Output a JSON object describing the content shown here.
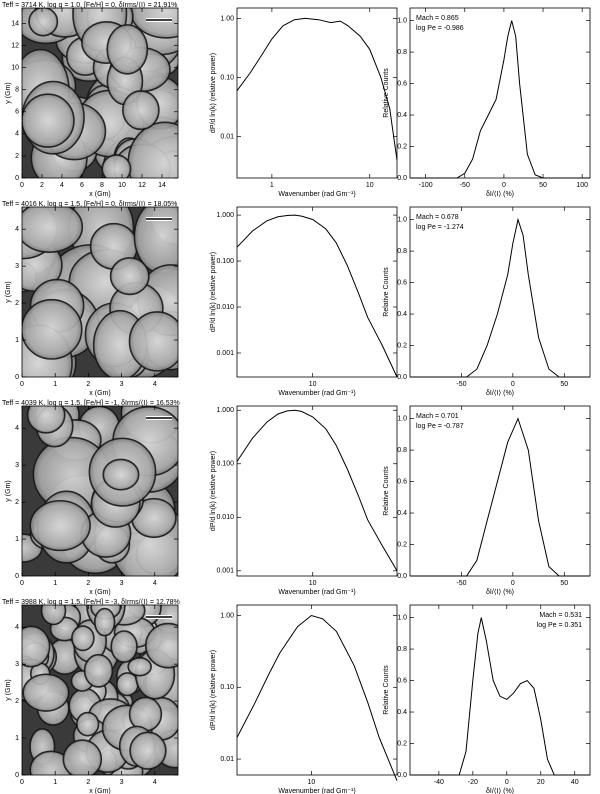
{
  "chart_data": [
    {
      "type": "image",
      "title": "Teff = 3714 K, log g = 1.0, [Fe/H] = 0, δIrms/⟨I⟩ = 21.91%",
      "xlabel": "x (Gm)",
      "ylabel": "y (Gm)",
      "xlim": [
        0,
        15.6
      ],
      "ylim": [
        0,
        15.4
      ],
      "xticks": [
        0,
        2,
        4,
        6,
        8,
        10,
        12,
        14
      ],
      "yticks": [
        0,
        2,
        4,
        6,
        8,
        10,
        12,
        14
      ]
    },
    {
      "type": "line",
      "xscale": "log",
      "yscale": "log",
      "xlabel": "Wavenumber (rad Gm⁻¹)",
      "ylabel": "dP/d ln(k) (relative power)",
      "xlim": [
        0.44,
        19
      ],
      "ylim": [
        0.002,
        1.5
      ],
      "xticks": [
        1,
        10
      ],
      "yticks": [
        {
          "value": 0.01,
          "label": "0.01"
        },
        {
          "value": 0.1,
          "label": "0.10"
        },
        {
          "value": 1,
          "label": "1.00"
        }
      ],
      "x": [
        0.44,
        0.6,
        0.8,
        1,
        1.3,
        1.7,
        2.2,
        3,
        4,
        5,
        6,
        8,
        10,
        13,
        16,
        19
      ],
      "values": [
        0.06,
        0.12,
        0.25,
        0.45,
        0.75,
        0.95,
        1.0,
        0.95,
        0.85,
        0.9,
        0.75,
        0.5,
        0.3,
        0.1,
        0.03,
        0.004
      ]
    },
    {
      "type": "line",
      "xlabel": "δI/⟨I⟩ (%)",
      "ylabel": "Relative Counts",
      "annotations": [
        "Mach = 0.865",
        "log Pe = -0.986"
      ],
      "xlim": [
        -120,
        110
      ],
      "ylim": [
        0,
        1.08
      ],
      "xticks": [
        -100,
        -50,
        0,
        50,
        100
      ],
      "yticks": [
        {
          "value": 0,
          "label": "0.0"
        },
        {
          "value": 0.2,
          "label": "0.2"
        },
        {
          "value": 0.4,
          "label": "0.4"
        },
        {
          "value": 0.6,
          "label": "0.6"
        },
        {
          "value": 0.8,
          "label": "0.8"
        },
        {
          "value": 1,
          "label": "1.0"
        }
      ],
      "x": [
        -120,
        -60,
        -50,
        -40,
        -30,
        -20,
        -10,
        0,
        5,
        10,
        15,
        20,
        30,
        40,
        50,
        110
      ],
      "values": [
        0,
        0,
        0.03,
        0.12,
        0.3,
        0.4,
        0.5,
        0.75,
        0.9,
        1.0,
        0.9,
        0.6,
        0.15,
        0.02,
        0,
        0
      ]
    },
    {
      "type": "image",
      "title": "Teff = 4016 K, log g = 1.5, [Fe/H] = 0, δIrms/⟨I⟩ = 18.05%",
      "xlabel": "x (Gm)",
      "ylabel": "y (Gm)",
      "xlim": [
        0,
        4.7
      ],
      "ylim": [
        0,
        4.6
      ],
      "xticks": [
        0,
        1,
        2,
        3,
        4
      ],
      "yticks": [
        0,
        1,
        2,
        3,
        4
      ]
    },
    {
      "type": "line",
      "xscale": "log",
      "yscale": "log",
      "xlabel": "Wavenumber (rad Gm⁻¹)",
      "ylabel": "dP/d ln(k) (relative power)",
      "xlim": [
        2.2,
        54
      ],
      "ylim": [
        0.0003,
        1.5
      ],
      "xticks": [
        10
      ],
      "yticks": [
        {
          "value": 0.001,
          "label": "0.001"
        },
        {
          "value": 0.01,
          "label": "0.010"
        },
        {
          "value": 0.1,
          "label": "0.100"
        },
        {
          "value": 1,
          "label": "1.000"
        }
      ],
      "x": [
        2.2,
        3,
        4,
        5,
        6,
        7,
        8,
        10,
        13,
        16,
        20,
        25,
        30,
        40,
        54
      ],
      "values": [
        0.2,
        0.45,
        0.75,
        0.92,
        0.98,
        1.0,
        0.95,
        0.8,
        0.5,
        0.25,
        0.08,
        0.02,
        0.006,
        0.0015,
        0.0003
      ]
    },
    {
      "type": "line",
      "xlabel": "δI/⟨I⟩ (%)",
      "ylabel": "Relative Counts",
      "annotations": [
        "Mach = 0.678",
        "log Pe = -1.274"
      ],
      "xlim": [
        -100,
        75
      ],
      "ylim": [
        0,
        1.08
      ],
      "xticks": [
        -50,
        0,
        50
      ],
      "yticks": [
        {
          "value": 0,
          "label": "0.0"
        },
        {
          "value": 0.2,
          "label": "0.2"
        },
        {
          "value": 0.4,
          "label": "0.4"
        },
        {
          "value": 0.6,
          "label": "0.6"
        },
        {
          "value": 0.8,
          "label": "0.8"
        },
        {
          "value": 1,
          "label": "1.0"
        }
      ],
      "x": [
        -100,
        -45,
        -35,
        -25,
        -15,
        -5,
        0,
        5,
        10,
        15,
        25,
        35,
        45,
        75
      ],
      "values": [
        0,
        0,
        0.05,
        0.2,
        0.4,
        0.65,
        0.85,
        1.0,
        0.9,
        0.65,
        0.25,
        0.05,
        0,
        0
      ]
    },
    {
      "type": "image",
      "title": "Teff = 4039 K, log g = 1.5, [Fe/H] = -1, δIrms/⟨I⟩ = 16.53%",
      "xlabel": "x (Gm)",
      "ylabel": "y (Gm)",
      "xlim": [
        0,
        4.7
      ],
      "ylim": [
        0,
        4.6
      ],
      "xticks": [
        0,
        1,
        2,
        3,
        4
      ],
      "yticks": [
        0,
        1,
        2,
        3,
        4
      ]
    },
    {
      "type": "line",
      "xscale": "log",
      "yscale": "log",
      "xlabel": "Wavenumber (rad Gm⁻¹)",
      "ylabel": "dP/d ln(k) (relative power)",
      "xlim": [
        2.2,
        54
      ],
      "ylim": [
        0.0008,
        1.2
      ],
      "xticks": [
        10
      ],
      "yticks": [
        {
          "value": 0.001,
          "label": "0.001"
        },
        {
          "value": 0.01,
          "label": "0.010"
        },
        {
          "value": 0.1,
          "label": "0.100"
        },
        {
          "value": 1,
          "label": "1.000"
        }
      ],
      "x": [
        2.2,
        3,
        4,
        5,
        6,
        7,
        8,
        10,
        13,
        16,
        20,
        25,
        30,
        40,
        54
      ],
      "values": [
        0.11,
        0.3,
        0.6,
        0.85,
        0.97,
        1.0,
        0.95,
        0.75,
        0.45,
        0.22,
        0.08,
        0.025,
        0.009,
        0.003,
        0.001
      ]
    },
    {
      "type": "line",
      "xlabel": "δI/⟨I⟩ (%)",
      "ylabel": "Relative Counts",
      "annotations": [
        "Mach = 0.701",
        "log Pe = -0.787"
      ],
      "xlim": [
        -100,
        75
      ],
      "ylim": [
        0,
        1.08
      ],
      "xticks": [
        -50,
        0,
        50
      ],
      "yticks": [
        {
          "value": 0,
          "label": "0.0"
        },
        {
          "value": 0.2,
          "label": "0.2"
        },
        {
          "value": 0.4,
          "label": "0.4"
        },
        {
          "value": 0.6,
          "label": "0.6"
        },
        {
          "value": 0.8,
          "label": "0.8"
        },
        {
          "value": 1,
          "label": "1.0"
        }
      ],
      "x": [
        -100,
        -45,
        -35,
        -25,
        -15,
        -5,
        5,
        15,
        25,
        35,
        45,
        75
      ],
      "values": [
        0,
        0,
        0.1,
        0.35,
        0.6,
        0.85,
        1.0,
        0.8,
        0.35,
        0.06,
        0,
        0
      ]
    },
    {
      "type": "image",
      "title": "Teff = 3988 K, log g = 1.5, [Fe/H] = -3, δIrms/⟨I⟩ = 12.78%",
      "xlabel": "x (Gm)",
      "ylabel": "y (Gm)",
      "xlim": [
        0,
        4.7
      ],
      "ylim": [
        0,
        4.6
      ],
      "xticks": [
        0,
        1,
        2,
        3,
        4
      ],
      "yticks": [
        0,
        1,
        2,
        3,
        4
      ]
    },
    {
      "type": "line",
      "xscale": "log",
      "yscale": "log",
      "xlabel": "Wavenumber (rad Gm⁻¹)",
      "ylabel": "dP/d ln(k) (relative power)",
      "xlim": [
        3,
        40
      ],
      "ylim": [
        0.006,
        1.4
      ],
      "xticks": [
        10
      ],
      "yticks": [
        {
          "value": 0.01,
          "label": "0.01"
        },
        {
          "value": 0.1,
          "label": "0.10"
        },
        {
          "value": 1,
          "label": "1.00"
        }
      ],
      "x": [
        3,
        4,
        5,
        6,
        8,
        10,
        12,
        15,
        20,
        25,
        30,
        40
      ],
      "values": [
        0.02,
        0.06,
        0.15,
        0.3,
        0.7,
        1.0,
        0.9,
        0.6,
        0.2,
        0.06,
        0.02,
        0.005
      ]
    },
    {
      "type": "line",
      "xlabel": "δI/⟨I⟩ (%)",
      "ylabel": "Relative Counts",
      "annotations": [
        "Mach = 0.531",
        "log Pe = 0.351"
      ],
      "annotation_corner": "upper right",
      "xlim": [
        -57,
        49
      ],
      "ylim": [
        0,
        1.08
      ],
      "xticks": [
        -40,
        -20,
        0,
        20,
        40
      ],
      "yticks": [
        {
          "value": 0,
          "label": "0.0"
        },
        {
          "value": 0.2,
          "label": "0.2"
        },
        {
          "value": 0.4,
          "label": "0.4"
        },
        {
          "value": 0.6,
          "label": "0.6"
        },
        {
          "value": 0.8,
          "label": "0.8"
        },
        {
          "value": 1,
          "label": "1.0"
        }
      ],
      "x": [
        -57,
        -28,
        -24,
        -20,
        -17,
        -15,
        -12,
        -8,
        -4,
        0,
        4,
        8,
        12,
        16,
        20,
        24,
        28,
        49
      ],
      "values": [
        0,
        0,
        0.15,
        0.6,
        0.9,
        1.0,
        0.85,
        0.6,
        0.5,
        0.48,
        0.52,
        0.58,
        0.6,
        0.55,
        0.35,
        0.1,
        0,
        0
      ]
    }
  ]
}
